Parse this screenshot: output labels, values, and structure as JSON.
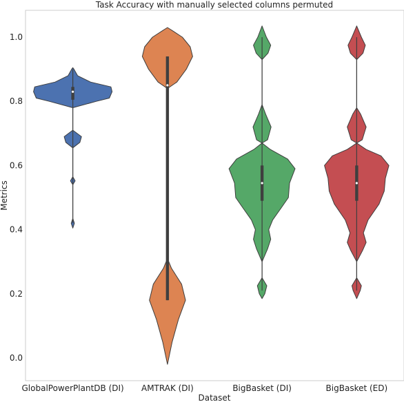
{
  "chart_data": {
    "type": "violin",
    "title": "Task Accuracy with manually selected columns permuted",
    "xlabel": "Dataset",
    "ylabel": "Metrics",
    "ylim": [
      -0.07,
      1.07
    ],
    "yticks": [
      0.0,
      0.2,
      0.4,
      0.6,
      0.8,
      1.0
    ],
    "ytick_labels": [
      "0.0",
      "0.2",
      "0.4",
      "0.6",
      "0.8",
      "1.0"
    ],
    "grid": false,
    "series": [
      {
        "category": "GlobalPowerPlantDB (DI)",
        "color": "#4c72b0",
        "median": 0.83,
        "q1": 0.805,
        "q3": 0.845,
        "whisker_low": 0.42,
        "whisker_high": 0.9,
        "density": [
          [
            0.405,
            0.0
          ],
          [
            0.42,
            0.04
          ],
          [
            0.435,
            0.0
          ],
          [
            0.54,
            0.0
          ],
          [
            0.552,
            0.06
          ],
          [
            0.565,
            0.0
          ],
          [
            0.655,
            0.0
          ],
          [
            0.672,
            0.18
          ],
          [
            0.69,
            0.22
          ],
          [
            0.71,
            0.0
          ],
          [
            0.78,
            0.0
          ],
          [
            0.8,
            0.6
          ],
          [
            0.81,
            0.93
          ],
          [
            0.83,
            1.0
          ],
          [
            0.845,
            0.97
          ],
          [
            0.86,
            0.45
          ],
          [
            0.88,
            0.12
          ],
          [
            0.9,
            0.03
          ],
          [
            0.905,
            0.0
          ]
        ]
      },
      {
        "category": "AMTRAK (DI)",
        "color": "#dd8452",
        "median": 0.85,
        "q1": 0.18,
        "q3": 0.94,
        "whisker_low": 0.18,
        "whisker_high": 0.94,
        "density": [
          [
            -0.02,
            0.0
          ],
          [
            0.05,
            0.12
          ],
          [
            0.12,
            0.28
          ],
          [
            0.18,
            0.46
          ],
          [
            0.23,
            0.36
          ],
          [
            0.28,
            0.1
          ],
          [
            0.31,
            0.0
          ],
          [
            0.84,
            0.0
          ],
          [
            0.86,
            0.24
          ],
          [
            0.9,
            0.48
          ],
          [
            0.94,
            0.64
          ],
          [
            0.97,
            0.58
          ],
          [
            1.0,
            0.38
          ],
          [
            1.02,
            0.13
          ],
          [
            1.03,
            0.0
          ]
        ]
      },
      {
        "category": "BigBasket (DI)",
        "color": "#55a868",
        "median": 0.545,
        "q1": 0.49,
        "q3": 0.6,
        "whisker_low": 0.21,
        "whisker_high": 1.0,
        "density": [
          [
            0.185,
            0.0
          ],
          [
            0.2,
            0.07
          ],
          [
            0.225,
            0.12
          ],
          [
            0.25,
            0.0
          ],
          [
            0.3,
            0.0
          ],
          [
            0.34,
            0.14
          ],
          [
            0.37,
            0.22
          ],
          [
            0.4,
            0.17
          ],
          [
            0.43,
            0.27
          ],
          [
            0.47,
            0.5
          ],
          [
            0.5,
            0.67
          ],
          [
            0.545,
            0.7
          ],
          [
            0.59,
            0.84
          ],
          [
            0.62,
            0.65
          ],
          [
            0.65,
            0.21
          ],
          [
            0.67,
            0.0
          ],
          [
            0.68,
            0.14
          ],
          [
            0.72,
            0.23
          ],
          [
            0.76,
            0.09
          ],
          [
            0.79,
            0.0
          ],
          [
            0.93,
            0.0
          ],
          [
            0.95,
            0.15
          ],
          [
            0.975,
            0.22
          ],
          [
            1.0,
            0.11
          ],
          [
            1.035,
            0.0
          ]
        ]
      },
      {
        "category": "BigBasket (ED)",
        "color": "#c44e52",
        "median": 0.545,
        "q1": 0.49,
        "q3": 0.6,
        "whisker_low": 0.21,
        "whisker_high": 1.0,
        "density": [
          [
            0.185,
            0.0
          ],
          [
            0.21,
            0.09
          ],
          [
            0.225,
            0.12
          ],
          [
            0.25,
            0.0
          ],
          [
            0.3,
            0.0
          ],
          [
            0.335,
            0.15
          ],
          [
            0.36,
            0.24
          ],
          [
            0.39,
            0.17
          ],
          [
            0.43,
            0.29
          ],
          [
            0.48,
            0.57
          ],
          [
            0.52,
            0.7
          ],
          [
            0.56,
            0.73
          ],
          [
            0.6,
            0.82
          ],
          [
            0.63,
            0.62
          ],
          [
            0.65,
            0.24
          ],
          [
            0.67,
            0.0
          ],
          [
            0.68,
            0.14
          ],
          [
            0.72,
            0.24
          ],
          [
            0.76,
            0.1
          ],
          [
            0.78,
            0.0
          ],
          [
            0.93,
            0.0
          ],
          [
            0.95,
            0.16
          ],
          [
            0.975,
            0.22
          ],
          [
            1.0,
            0.12
          ],
          [
            1.035,
            0.0
          ]
        ]
      }
    ]
  }
}
